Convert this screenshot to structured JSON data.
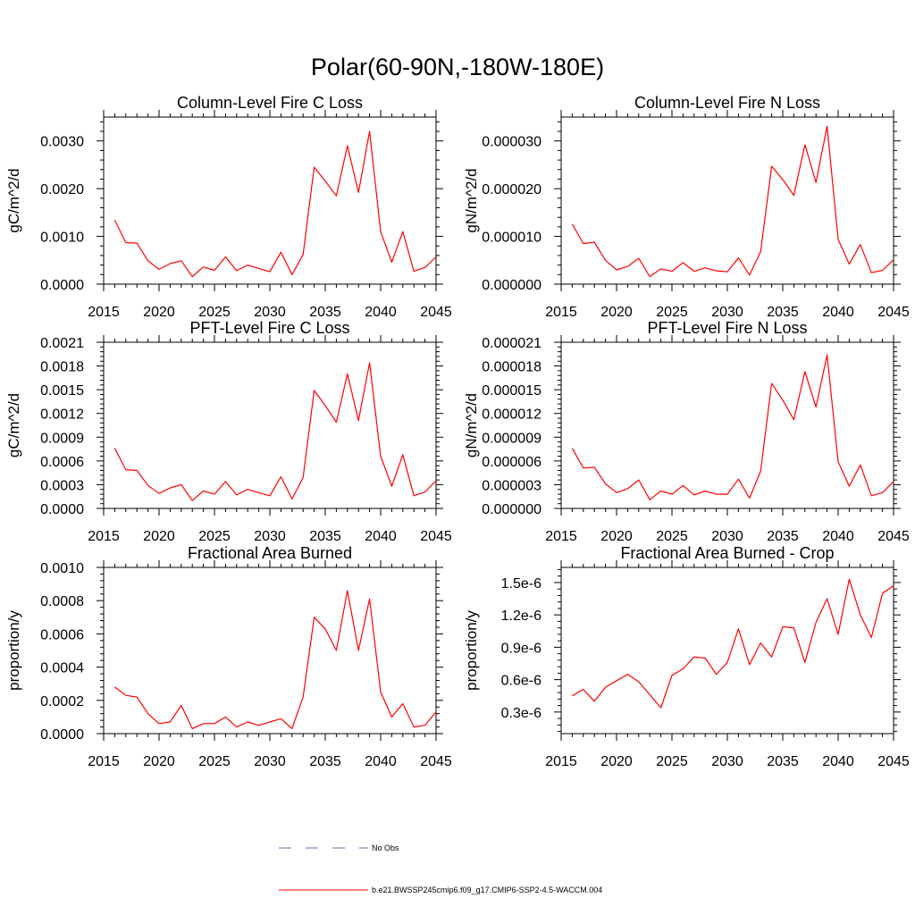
{
  "title": "Polar(60-90N,-180W-180E)",
  "colors": {
    "series": "#ff0000",
    "obs": "#6b6bb5",
    "axis": "#000000"
  },
  "legend": {
    "obs_label": "No Obs",
    "series_label": "b.e21.BWSSP245cmip6.f09_g17.CMIP6-SSP2-4.5-WACCM.004"
  },
  "chart_data": [
    {
      "type": "line",
      "title": "Column-Level Fire C Loss",
      "ylabel": "gC/m^2/d",
      "xlabel": "",
      "xlim": [
        2015,
        2045
      ],
      "ylim": [
        0.0,
        0.0035
      ],
      "xticks": [
        "2015",
        "2020",
        "2025",
        "2030",
        "2035",
        "2040",
        "2045"
      ],
      "yticks": [
        "0.0000",
        "0.0010",
        "0.0020",
        "0.0030"
      ],
      "ytick_values": [
        0.0,
        0.001,
        0.002,
        0.003
      ],
      "x": [
        2016,
        2017,
        2018,
        2019,
        2020,
        2021,
        2022,
        2023,
        2024,
        2025,
        2026,
        2027,
        2028,
        2029,
        2030,
        2031,
        2032,
        2033,
        2034,
        2035,
        2036,
        2037,
        2038,
        2039,
        2040,
        2041,
        2042,
        2043,
        2044,
        2045
      ],
      "y": [
        0.00134,
        0.00087,
        0.00086,
        0.00049,
        0.00031,
        0.00043,
        0.00049,
        0.00016,
        0.00036,
        0.00029,
        0.00057,
        0.00028,
        0.0004,
        0.00033,
        0.00026,
        0.00067,
        0.0002,
        0.00062,
        0.00245,
        0.00216,
        0.00185,
        0.0029,
        0.00192,
        0.0032,
        0.0011,
        0.00046,
        0.0011,
        0.00027,
        0.00035,
        0.00057
      ]
    },
    {
      "type": "line",
      "title": "Column-Level Fire N Loss",
      "ylabel": "gN/m^2/d",
      "xlabel": "",
      "xlim": [
        2015,
        2045
      ],
      "ylim": [
        0.0,
        3.5e-05
      ],
      "xticks": [
        "2015",
        "2020",
        "2025",
        "2030",
        "2035",
        "2040",
        "2045"
      ],
      "yticks": [
        "0.000000",
        "0.000010",
        "0.000020",
        "0.000030"
      ],
      "ytick_values": [
        0.0,
        1e-05,
        2e-05,
        3e-05
      ],
      "x": [
        2016,
        2017,
        2018,
        2019,
        2020,
        2021,
        2022,
        2023,
        2024,
        2025,
        2026,
        2027,
        2028,
        2029,
        2030,
        2031,
        2032,
        2033,
        2034,
        2035,
        2036,
        2037,
        2038,
        2039,
        2040,
        2041,
        2042,
        2043,
        2044,
        2045
      ],
      "y": [
        1.26e-05,
        8.5e-06,
        8.8e-06,
        5e-06,
        3e-06,
        3.7e-06,
        5.4e-06,
        1.6e-06,
        3.2e-06,
        2.7e-06,
        4.5e-06,
        2.7e-06,
        3.4e-06,
        2.8e-06,
        2.6e-06,
        5.5e-06,
        1.9e-06,
        6.8e-06,
        2.47e-05,
        2.19e-05,
        1.86e-05,
        2.92e-05,
        2.13e-05,
        3.31e-05,
        9.4e-06,
        4.2e-06,
        8.3e-06,
        2.4e-06,
        2.9e-06,
        5.1e-06
      ]
    },
    {
      "type": "line",
      "title": "PFT-Level Fire C Loss",
      "ylabel": "gC/m^2/d",
      "xlabel": "",
      "xlim": [
        2015,
        2045
      ],
      "ylim": [
        0.0,
        0.0021
      ],
      "xticks": [
        "2015",
        "2020",
        "2025",
        "2030",
        "2035",
        "2040",
        "2045"
      ],
      "yticks": [
        "0.0000",
        "0.0003",
        "0.0006",
        "0.0009",
        "0.0012",
        "0.0015",
        "0.0018",
        "0.0021"
      ],
      "ytick_values": [
        0.0,
        0.0003,
        0.0006,
        0.0009,
        0.0012,
        0.0015,
        0.0018,
        0.0021
      ],
      "x": [
        2016,
        2017,
        2018,
        2019,
        2020,
        2021,
        2022,
        2023,
        2024,
        2025,
        2026,
        2027,
        2028,
        2029,
        2030,
        2031,
        2032,
        2033,
        2034,
        2035,
        2036,
        2037,
        2038,
        2039,
        2040,
        2041,
        2042,
        2043,
        2044,
        2045
      ],
      "y": [
        0.00076,
        0.00049,
        0.00048,
        0.00029,
        0.00019,
        0.00026,
        0.0003,
        0.0001,
        0.00022,
        0.00018,
        0.00034,
        0.00017,
        0.00024,
        0.0002,
        0.00016,
        0.0004,
        0.00012,
        0.00039,
        0.00149,
        0.0013,
        0.00109,
        0.0017,
        0.00111,
        0.00184,
        0.00066,
        0.00028,
        0.00068,
        0.00016,
        0.00021,
        0.00035
      ]
    },
    {
      "type": "line",
      "title": "PFT-Level Fire N Loss",
      "ylabel": "gN/m^2/d",
      "xlabel": "",
      "xlim": [
        2015,
        2045
      ],
      "ylim": [
        0.0,
        2.1e-05
      ],
      "xticks": [
        "2015",
        "2020",
        "2025",
        "2030",
        "2035",
        "2040",
        "2045"
      ],
      "yticks": [
        "0.000000",
        "0.000003",
        "0.000006",
        "0.000009",
        "0.000012",
        "0.000015",
        "0.000018",
        "0.000021"
      ],
      "ytick_values": [
        0.0,
        3e-06,
        6e-06,
        9e-06,
        1.2e-05,
        1.5e-05,
        1.8e-05,
        2.1e-05
      ],
      "x": [
        2016,
        2017,
        2018,
        2019,
        2020,
        2021,
        2022,
        2023,
        2024,
        2025,
        2026,
        2027,
        2028,
        2029,
        2030,
        2031,
        2032,
        2033,
        2034,
        2035,
        2036,
        2037,
        2038,
        2039,
        2040,
        2041,
        2042,
        2043,
        2044,
        2045
      ],
      "y": [
        7.6e-06,
        5.1e-06,
        5.2e-06,
        3.1e-06,
        2e-06,
        2.5e-06,
        3.6e-06,
        1.1e-06,
        2.2e-06,
        1.8e-06,
        2.9e-06,
        1.7e-06,
        2.2e-06,
        1.8e-06,
        1.8e-06,
        3.7e-06,
        1.3e-06,
        4.7e-06,
        1.58e-05,
        1.37e-05,
        1.12e-05,
        1.73e-05,
        1.28e-05,
        1.94e-05,
        5.9e-06,
        2.8e-06,
        5.5e-06,
        1.6e-06,
        2e-06,
        3.4e-06
      ]
    },
    {
      "type": "line",
      "title": "Fractional Area Burned",
      "ylabel": "proportion/y",
      "xlabel": "",
      "xlim": [
        2015,
        2045
      ],
      "ylim": [
        0.0,
        0.001
      ],
      "xticks": [
        "2015",
        "2020",
        "2025",
        "2030",
        "2035",
        "2040",
        "2045"
      ],
      "yticks": [
        "0.0000",
        "0.0002",
        "0.0004",
        "0.0006",
        "0.0008",
        "0.0010"
      ],
      "ytick_values": [
        0.0,
        0.0002,
        0.0004,
        0.0006,
        0.0008,
        0.001
      ],
      "x": [
        2016,
        2017,
        2018,
        2019,
        2020,
        2021,
        2022,
        2023,
        2024,
        2025,
        2026,
        2027,
        2028,
        2029,
        2030,
        2031,
        2032,
        2033,
        2034,
        2035,
        2036,
        2037,
        2038,
        2039,
        2040,
        2041,
        2042,
        2043,
        2044,
        2045
      ],
      "y": [
        0.00028,
        0.00023,
        0.00022,
        0.00012,
        6e-05,
        7e-05,
        0.00017,
        3e-05,
        6e-05,
        6e-05,
        0.0001,
        4e-05,
        7e-05,
        5e-05,
        7e-05,
        9e-05,
        3e-05,
        0.00022,
        0.0007,
        0.00063,
        0.0005,
        0.00086,
        0.0005,
        0.00081,
        0.00025,
        0.0001,
        0.00018,
        4e-05,
        5e-05,
        0.00013
      ]
    },
    {
      "type": "line",
      "title": "Fractional Area Burned - Crop",
      "ylabel": "proportion/y",
      "xlabel": "",
      "xlim": [
        2015,
        2045
      ],
      "ylim": [
        1e-07,
        1.64e-06
      ],
      "xticks": [
        "2015",
        "2020",
        "2025",
        "2030",
        "2035",
        "2040",
        "2045"
      ],
      "yticks": [
        "0.3e-6",
        "0.6e-6",
        "0.9e-6",
        "1.2e-6",
        "1.5e-6"
      ],
      "ytick_values": [
        3e-07,
        6e-07,
        9e-07,
        1.2e-06,
        1.5e-06
      ],
      "x": [
        2016,
        2017,
        2018,
        2019,
        2020,
        2021,
        2022,
        2023,
        2024,
        2025,
        2026,
        2027,
        2028,
        2029,
        2030,
        2031,
        2032,
        2033,
        2034,
        2035,
        2036,
        2037,
        2038,
        2039,
        2040,
        2041,
        2042,
        2043,
        2044,
        2045
      ],
      "y": [
        4.5e-07,
        5.1e-07,
        4e-07,
        5.3e-07,
        5.9e-07,
        6.5e-07,
        5.8e-07,
        4.6e-07,
        3.4e-07,
        6.4e-07,
        7e-07,
        8.1e-07,
        8e-07,
        6.5e-07,
        7.6e-07,
        1.07e-06,
        7.4e-07,
        9.4e-07,
        8.1e-07,
        1.09e-06,
        1.08e-06,
        7.6e-07,
        1.13e-06,
        1.35e-06,
        1.02e-06,
        1.53e-06,
        1.2e-06,
        9.9e-07,
        1.4e-06,
        1.47e-06
      ]
    }
  ]
}
